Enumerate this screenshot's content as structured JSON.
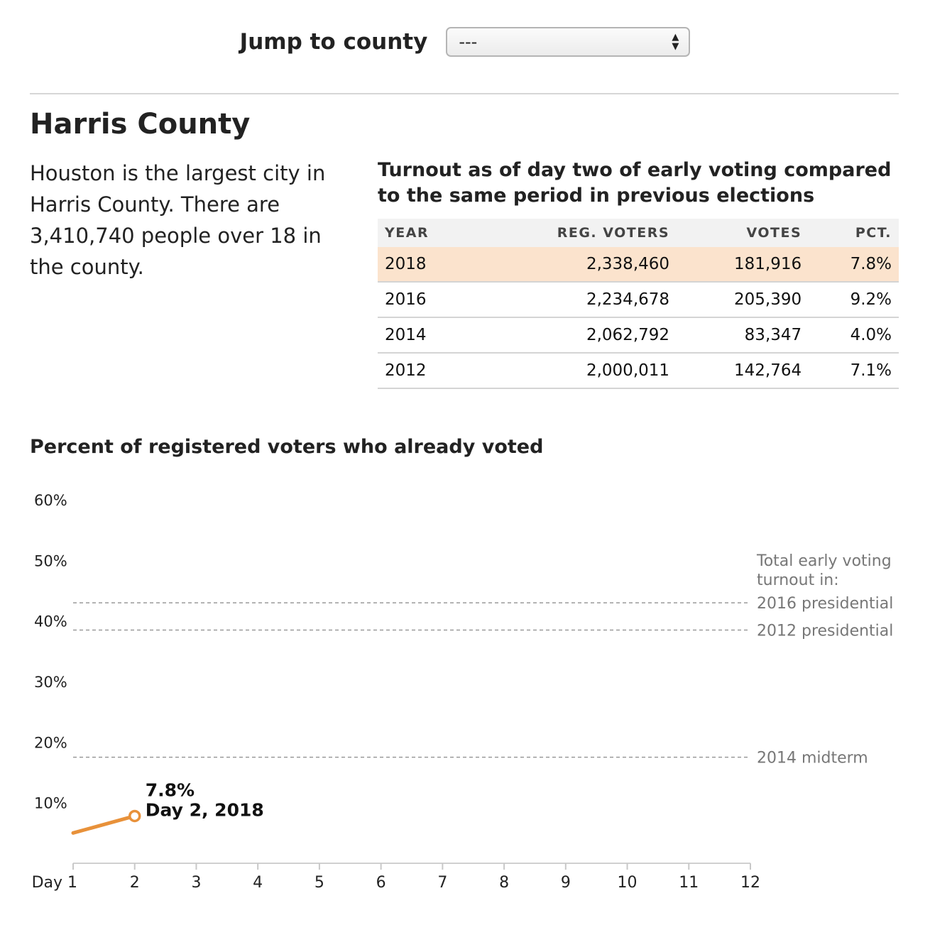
{
  "jump": {
    "label": "Jump to county",
    "selected": "---"
  },
  "county": {
    "name": "Harris County",
    "description": "Houston is the largest city in Harris County. There are 3,410,740 people over 18 in the county."
  },
  "turnout_table": {
    "title": "Turnout as of day two of early voting compared to the same period in previous elections",
    "headers": [
      "YEAR",
      "REG. VOTERS",
      "VOTES",
      "PCT."
    ],
    "rows": [
      [
        "2018",
        "2,338,460",
        "181,916",
        "7.8%"
      ],
      [
        "2016",
        "2,234,678",
        "205,390",
        "9.2%"
      ],
      [
        "2014",
        "2,062,792",
        "83,347",
        "4.0%"
      ],
      [
        "2012",
        "2,000,011",
        "142,764",
        "7.1%"
      ]
    ]
  },
  "colors": {
    "accent": "#e8913a",
    "highlight_row": "#fbe3cd",
    "reference_line": "#9a9a9a"
  },
  "chart_data": {
    "type": "line",
    "title": "Percent of registered voters who already voted",
    "xlabel": "",
    "ylabel": "",
    "x_tick_labels": [
      "Day 1",
      "2",
      "3",
      "4",
      "5",
      "6",
      "7",
      "8",
      "9",
      "10",
      "11",
      "12"
    ],
    "xlim": [
      1,
      12
    ],
    "y_tick_labels": [
      "10%",
      "20%",
      "30%",
      "40%",
      "50%",
      "60%"
    ],
    "y_ticks": [
      10,
      20,
      30,
      40,
      50,
      60
    ],
    "ylim": [
      0,
      60
    ],
    "grid": false,
    "series": [
      {
        "name": "2018",
        "x": [
          1,
          2
        ],
        "y": [
          5.0,
          7.8
        ]
      }
    ],
    "point_annotation": {
      "x": 2,
      "y": 7.8,
      "lines": [
        "7.8%",
        "Day 2, 2018"
      ]
    },
    "reference_header": [
      "Total early voting",
      "turnout in:"
    ],
    "reference_lines": [
      {
        "label": "2016 presidential",
        "value": 43.0
      },
      {
        "label": "2012 presidential",
        "value": 38.5
      },
      {
        "label": "2014 midterm",
        "value": 17.5
      }
    ]
  }
}
